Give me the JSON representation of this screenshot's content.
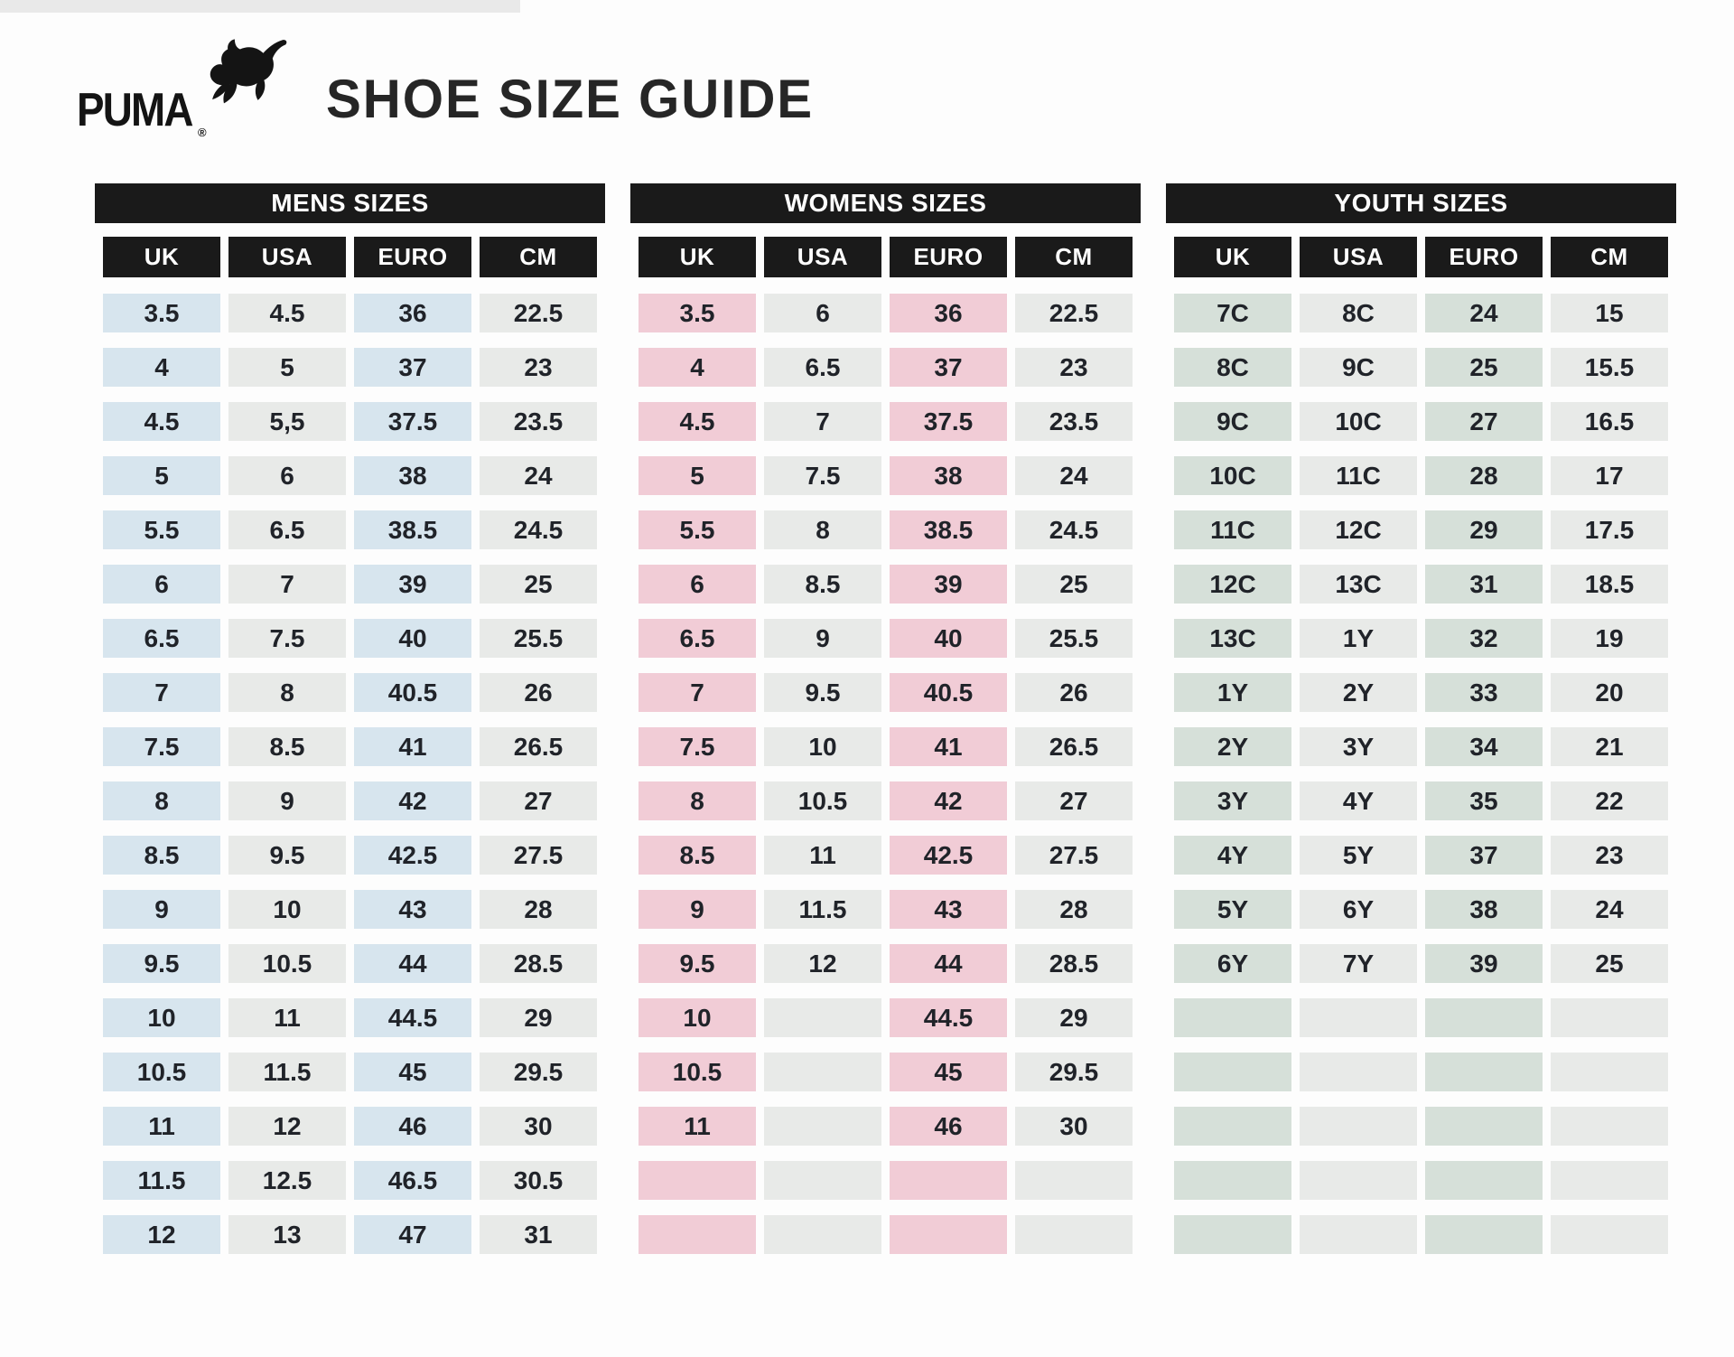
{
  "header": {
    "brand": "PUMA",
    "registered": "®",
    "title": "SHOE SIZE GUIDE"
  },
  "icons": {
    "logo_cat": "puma-leaping-cat"
  },
  "colors": {
    "bar_black": "#1a1a1a",
    "mens_accent": "#d7e5ee",
    "womens_accent": "#f1ccd6",
    "youth_accent": "#d6e0d9",
    "neutral_gray": "#e8eae8",
    "text_dark": "#202329"
  },
  "tables": [
    {
      "id": "mens",
      "title": "MENS SIZES",
      "columns": [
        "UK",
        "USA",
        "EURO",
        "CM"
      ],
      "accent": "#d7e5ee",
      "neutral": "#e8eae8",
      "rows": [
        [
          "3.5",
          "4.5",
          "36",
          "22.5"
        ],
        [
          "4",
          "5",
          "37",
          "23"
        ],
        [
          "4.5",
          "5,5",
          "37.5",
          "23.5"
        ],
        [
          "5",
          "6",
          "38",
          "24"
        ],
        [
          "5.5",
          "6.5",
          "38.5",
          "24.5"
        ],
        [
          "6",
          "7",
          "39",
          "25"
        ],
        [
          "6.5",
          "7.5",
          "40",
          "25.5"
        ],
        [
          "7",
          "8",
          "40.5",
          "26"
        ],
        [
          "7.5",
          "8.5",
          "41",
          "26.5"
        ],
        [
          "8",
          "9",
          "42",
          "27"
        ],
        [
          "8.5",
          "9.5",
          "42.5",
          "27.5"
        ],
        [
          "9",
          "10",
          "43",
          "28"
        ],
        [
          "9.5",
          "10.5",
          "44",
          "28.5"
        ],
        [
          "10",
          "11",
          "44.5",
          "29"
        ],
        [
          "10.5",
          "11.5",
          "45",
          "29.5"
        ],
        [
          "11",
          "12",
          "46",
          "30"
        ],
        [
          "11.5",
          "12.5",
          "46.5",
          "30.5"
        ],
        [
          "12",
          "13",
          "47",
          "31"
        ]
      ]
    },
    {
      "id": "womens",
      "title": "WOMENS SIZES",
      "columns": [
        "UK",
        "USA",
        "EURO",
        "CM"
      ],
      "accent": "#f1ccd6",
      "neutral": "#e8eae8",
      "rows": [
        [
          "3.5",
          "6",
          "36",
          "22.5"
        ],
        [
          "4",
          "6.5",
          "37",
          "23"
        ],
        [
          "4.5",
          "7",
          "37.5",
          "23.5"
        ],
        [
          "5",
          "7.5",
          "38",
          "24"
        ],
        [
          "5.5",
          "8",
          "38.5",
          "24.5"
        ],
        [
          "6",
          "8.5",
          "39",
          "25"
        ],
        [
          "6.5",
          "9",
          "40",
          "25.5"
        ],
        [
          "7",
          "9.5",
          "40.5",
          "26"
        ],
        [
          "7.5",
          "10",
          "41",
          "26.5"
        ],
        [
          "8",
          "10.5",
          "42",
          "27"
        ],
        [
          "8.5",
          "11",
          "42.5",
          "27.5"
        ],
        [
          "9",
          "11.5",
          "43",
          "28"
        ],
        [
          "9.5",
          "12",
          "44",
          "28.5"
        ],
        [
          "10",
          "",
          "44.5",
          "29"
        ],
        [
          "10.5",
          "",
          "45",
          "29.5"
        ],
        [
          "11",
          "",
          "46",
          "30"
        ],
        [
          "",
          "",
          "",
          ""
        ],
        [
          "",
          "",
          "",
          ""
        ]
      ]
    },
    {
      "id": "youth",
      "title": "YOUTH SIZES",
      "columns": [
        "UK",
        "USA",
        "EURO",
        "CM"
      ],
      "accent": "#d6e0d9",
      "neutral": "#e8eae8",
      "rows": [
        [
          "7C",
          "8C",
          "24",
          "15"
        ],
        [
          "8C",
          "9C",
          "25",
          "15.5"
        ],
        [
          "9C",
          "10C",
          "27",
          "16.5"
        ],
        [
          "10C",
          "11C",
          "28",
          "17"
        ],
        [
          "11C",
          "12C",
          "29",
          "17.5"
        ],
        [
          "12C",
          "13C",
          "31",
          "18.5"
        ],
        [
          "13C",
          "1Y",
          "32",
          "19"
        ],
        [
          "1Y",
          "2Y",
          "33",
          "20"
        ],
        [
          "2Y",
          "3Y",
          "34",
          "21"
        ],
        [
          "3Y",
          "4Y",
          "35",
          "22"
        ],
        [
          "4Y",
          "5Y",
          "37",
          "23"
        ],
        [
          "5Y",
          "6Y",
          "38",
          "24"
        ],
        [
          "6Y",
          "7Y",
          "39",
          "25"
        ],
        [
          "",
          "",
          "",
          ""
        ],
        [
          "",
          "",
          "",
          ""
        ],
        [
          "",
          "",
          "",
          ""
        ],
        [
          "",
          "",
          "",
          ""
        ],
        [
          "",
          "",
          "",
          ""
        ]
      ]
    }
  ]
}
